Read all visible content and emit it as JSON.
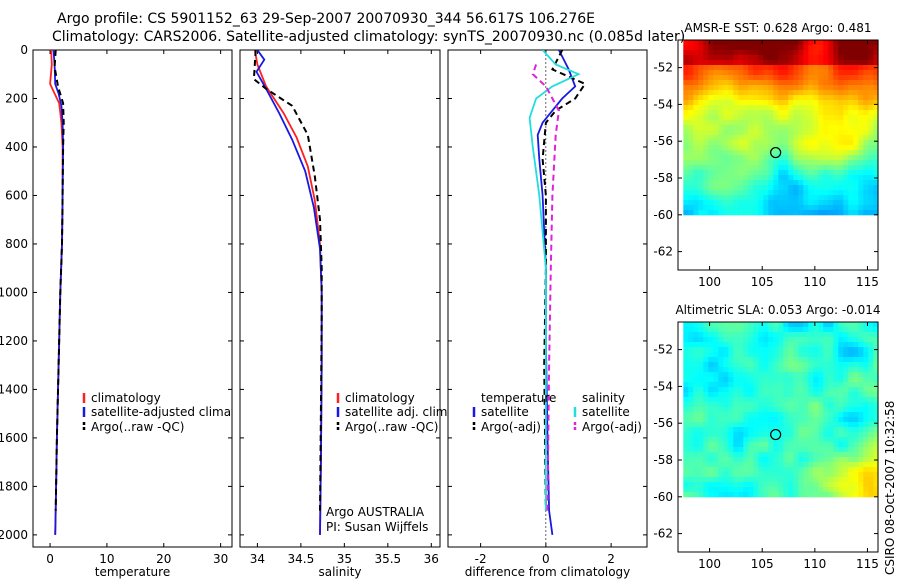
{
  "header": {
    "line1": "Argo profile: CS 5901152_63 29-Sep-2007 20070930_344 56.617S 106.276E",
    "line2": "Climatology: CARS2006. Satellite-adjusted climatology: synTS_20070930.nc (0.085d later)"
  },
  "side_label": "CSIRO 08-Oct-2007 10:32:58",
  "colors": {
    "red": "#ff2020",
    "blue": "#1818e0",
    "black": "#000000",
    "cyan": "#22dddd",
    "magenta": "#dd22dd"
  },
  "chart_data": [
    {
      "type": "line",
      "id": "temperature",
      "xlabel": "temperature",
      "ylabel": "",
      "xlim": [
        -3,
        32
      ],
      "ylim": [
        0,
        2050
      ],
      "xticks": [
        "0",
        "10",
        "20",
        "30"
      ],
      "yticks": [
        "0",
        "200",
        "400",
        "600",
        "800",
        "1000",
        "1200",
        "1400",
        "1600",
        "1800",
        "2000"
      ],
      "series": [
        {
          "name": "climatology",
          "color": "red",
          "dash": "solid",
          "x": [
            0.2,
            0.3,
            0.0,
            0.6,
            1.6,
            2.0,
            2.2,
            2.2,
            2.1,
            1.8,
            1.5,
            1.2,
            1.0,
            0.9
          ],
          "y": [
            0,
            60,
            140,
            170,
            220,
            300,
            400,
            600,
            800,
            1000,
            1300,
            1600,
            1900,
            2000
          ]
        },
        {
          "name": "satellite-adjusted climatology",
          "color": "blue",
          "dash": "solid",
          "x": [
            0.6,
            0.8,
            0.9,
            1.5,
            2.0,
            2.2,
            2.3,
            2.2,
            2.1,
            1.8,
            1.5,
            1.2,
            1.0,
            0.9
          ],
          "y": [
            0,
            60,
            140,
            180,
            230,
            300,
            400,
            600,
            800,
            1000,
            1300,
            1600,
            1900,
            2000
          ]
        },
        {
          "name": "Argo(..raw -QC)",
          "color": "black",
          "dash": "dashed",
          "x": [
            1.0,
            0.8,
            1.4,
            2.3,
            2.4,
            2.3,
            2.2,
            2.1,
            1.8,
            1.5,
            1.2,
            1.0
          ],
          "y": [
            0,
            70,
            150,
            220,
            300,
            400,
            600,
            800,
            1000,
            1300,
            1600,
            1900
          ]
        }
      ],
      "legend": {
        "position": "right-middle",
        "items": [
          "climatology",
          "satellite-adjusted climatology",
          "Argo(..raw -QC)"
        ]
      }
    },
    {
      "type": "line",
      "id": "salinity",
      "xlabel": "salinity",
      "ylabel": "",
      "xlim": [
        33.8,
        36.1
      ],
      "ylim": [
        0,
        2050
      ],
      "xticks": [
        "34",
        "34.5",
        "35",
        "35.5",
        "36"
      ],
      "series": [
        {
          "name": "climatology",
          "color": "red",
          "dash": "solid",
          "x": [
            33.97,
            34.0,
            34.1,
            34.3,
            34.45,
            34.58,
            34.66,
            34.72,
            34.74,
            34.74,
            34.73,
            34.72
          ],
          "y": [
            0,
            60,
            150,
            260,
            360,
            480,
            620,
            800,
            1000,
            1300,
            1700,
            2000
          ]
        },
        {
          "name": "satellite adj. clim.",
          "color": "blue",
          "dash": "solid",
          "x": [
            34.0,
            34.08,
            33.99,
            34.1,
            34.25,
            34.4,
            34.55,
            34.65,
            34.72,
            34.74,
            34.74,
            34.73,
            34.72
          ],
          "y": [
            0,
            40,
            90,
            160,
            260,
            370,
            500,
            650,
            820,
            1000,
            1300,
            1700,
            2000
          ]
        },
        {
          "name": "Argo(..raw -QC)",
          "color": "black",
          "dash": "dashed",
          "x": [
            33.98,
            33.96,
            34.1,
            34.4,
            34.58,
            34.66,
            34.72,
            34.74,
            34.74,
            34.73,
            34.72
          ],
          "y": [
            0,
            120,
            160,
            230,
            350,
            520,
            700,
            900,
            1100,
            1500,
            1900
          ]
        }
      ],
      "legend": {
        "position": "right-middle",
        "items": [
          "climatology",
          "satellite adj. clim.",
          "Argo(..raw -QC)"
        ]
      },
      "annotations": [
        "Argo AUSTRALIA",
        "PI: Susan Wijffels"
      ]
    },
    {
      "type": "line",
      "id": "difference",
      "xlabel": "difference from climatology",
      "ylabel": "",
      "xlim": [
        -3,
        3.1
      ],
      "ylim": [
        0,
        2050
      ],
      "xticks": [
        "-2",
        "0",
        "2"
      ],
      "series": [
        {
          "name": "temperature satellite",
          "color": "blue",
          "dash": "solid",
          "x": [
            0.4,
            0.7,
            0.9,
            0.5,
            0.2,
            -0.1,
            -0.25,
            -0.2,
            -0.1,
            0.0,
            0.0,
            0.05,
            0.1,
            0.2
          ],
          "y": [
            0,
            80,
            150,
            200,
            250,
            300,
            350,
            450,
            600,
            900,
            1200,
            1600,
            1900,
            2000
          ]
        },
        {
          "name": "temperature Argo(-adj)",
          "color": "black",
          "dash": "dashed",
          "x": [
            0.5,
            0.2,
            1.2,
            0.9,
            0.3,
            0.0,
            -0.1,
            0.0,
            0.0,
            -0.05,
            0.0
          ],
          "y": [
            0,
            80,
            140,
            200,
            250,
            300,
            450,
            600,
            900,
            1300,
            1900
          ]
        },
        {
          "name": "salinity satellite",
          "color": "cyan",
          "dash": "solid",
          "x": [
            -0.1,
            0.3,
            1.0,
            0.2,
            -0.3,
            -0.5,
            -0.4,
            -0.2,
            0.0,
            0.0,
            0.0
          ],
          "y": [
            0,
            60,
            100,
            150,
            200,
            280,
            400,
            600,
            900,
            1300,
            1900
          ]
        },
        {
          "name": "salinity Argo(-adj)",
          "color": "magenta",
          "dash": "dashed",
          "x": [
            -0.3,
            -0.4,
            0.0,
            0.4,
            0.3,
            0.2,
            0.15,
            0.1,
            0.05
          ],
          "y": [
            60,
            100,
            150,
            250,
            350,
            600,
            900,
            1300,
            1900
          ]
        }
      ],
      "legend": {
        "position": "right-middle",
        "headers": [
          "temperature",
          "salinity"
        ],
        "items": [
          "satellite",
          "Argo(-adj)",
          "satellite",
          "Argo(-adj)"
        ]
      }
    },
    {
      "type": "heatmap",
      "id": "sst",
      "title": "AMSR-E SST: 0.628 Argo: 0.481",
      "xlim": [
        97,
        116
      ],
      "ylim": [
        -63,
        -50.5
      ],
      "xticks": [
        "100",
        "105",
        "110",
        "115"
      ],
      "yticks": [
        "-52",
        "-54",
        "-56",
        "-58",
        "-60",
        "-62"
      ],
      "data_extent": {
        "lat_bottom": -60
      },
      "marker": {
        "lon": 106.276,
        "lat": -56.617
      }
    },
    {
      "type": "heatmap",
      "id": "sla",
      "title": "Altimetric SLA: 0.053 Argo: -0.014",
      "xlim": [
        97,
        116
      ],
      "ylim": [
        -63,
        -50.5
      ],
      "xticks": [
        "100",
        "105",
        "110",
        "115"
      ],
      "yticks": [
        "-52",
        "-54",
        "-56",
        "-58",
        "-60",
        "-62"
      ],
      "data_extent": {
        "lat_bottom": -60
      },
      "marker": {
        "lon": 106.276,
        "lat": -56.617
      }
    }
  ]
}
